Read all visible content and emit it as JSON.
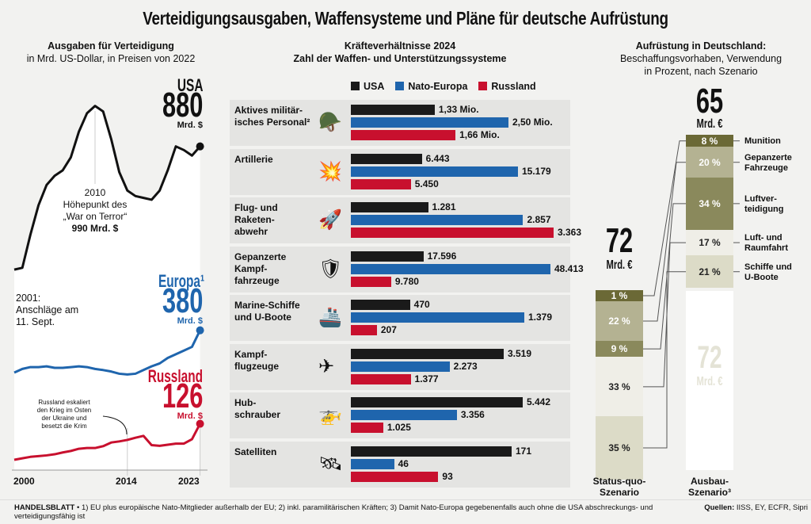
{
  "title": "Verteidigungsausgaben, Waffensysteme und Pläne für deutsche Aufrüstung",
  "left": {
    "heading": "Ausgaben für Verteidigung",
    "subheading": "in Mrd. US-Dollar, in Preisen von 2022",
    "usa": {
      "label": "USA",
      "value": "880",
      "unit": "Mrd. $"
    },
    "europe": {
      "label": "Europa¹",
      "value": "380",
      "unit": "Mrd. $"
    },
    "russia": {
      "label": "Russland",
      "value": "126",
      "unit": "Mrd. $"
    },
    "ann_2010": {
      "year": "2010",
      "l1": "Höhepunkt des",
      "l2": "„War on Terror“",
      "l3": "990 Mrd. $"
    },
    "ann_2001": {
      "l1": "2001:",
      "l2": "Anschläge am",
      "l3": "11. Sept."
    },
    "ann_russia": {
      "l1": "Russland eskaliert",
      "l2": "den Krieg im Osten",
      "l3": "der Ukraine und",
      "l4": "besetzt die Krim"
    },
    "ticks": [
      "2000",
      "2014",
      "2023"
    ]
  },
  "chart_data": [
    {
      "type": "line",
      "title": "Ausgaben für Verteidigung",
      "ylabel": "in Mrd. US-Dollar, in Preisen von 2022",
      "x": [
        2000,
        2001,
        2002,
        2003,
        2004,
        2005,
        2006,
        2007,
        2008,
        2009,
        2010,
        2011,
        2012,
        2013,
        2014,
        2015,
        2016,
        2017,
        2018,
        2019,
        2020,
        2021,
        2022,
        2023
      ],
      "series": [
        {
          "name": "USA",
          "color": "#111111",
          "values": [
            545,
            550,
            640,
            720,
            775,
            800,
            815,
            850,
            920,
            970,
            990,
            975,
            900,
            810,
            760,
            745,
            740,
            735,
            760,
            815,
            880,
            870,
            855,
            880
          ]
        },
        {
          "name": "Europa¹",
          "color": "#1f65ad",
          "values": [
            265,
            275,
            280,
            280,
            282,
            278,
            278,
            280,
            282,
            280,
            275,
            272,
            268,
            262,
            260,
            262,
            272,
            282,
            290,
            305,
            315,
            325,
            335,
            380
          ]
        },
        {
          "name": "Russland",
          "color": "#c8102e",
          "values": [
            28,
            32,
            36,
            38,
            40,
            43,
            48,
            52,
            58,
            60,
            60,
            65,
            75,
            78,
            82,
            88,
            93,
            68,
            66,
            69,
            72,
            72,
            84,
            126
          ]
        }
      ],
      "xticks": [
        "2000",
        "2014",
        "2023"
      ],
      "ylim": [
        0,
        1000
      ]
    },
    {
      "type": "bar",
      "title": "Kräfteverhältnisse 2024",
      "subtitle": "Zahl der Waffen- und Unterstützungssysteme",
      "legend": [
        "USA",
        "Nato-Europa",
        "Russland"
      ],
      "colors": [
        "#1a1a1a",
        "#1f65ad",
        "#c8102e"
      ],
      "rows": [
        {
          "label": "Aktives militär-isches Personal²",
          "l1": "Aktives militär-",
          "l2": "isches Personal²",
          "icon": "soldier-icon",
          "values": [
            1.33,
            2.5,
            1.66
          ],
          "labels": [
            "1,33 Mio.",
            "2,50 Mio.",
            "1,66 Mio."
          ]
        },
        {
          "label": "Artillerie",
          "l1": "Artillerie",
          "l2": "",
          "icon": "artillery-icon",
          "values": [
            6443,
            15179,
            5450
          ],
          "labels": [
            "6.443",
            "15.179",
            "5.450"
          ]
        },
        {
          "label": "Flug- und Raketen-abwehr",
          "l1": "Flug- und",
          "l2": "Raketen-",
          "l3": "abwehr",
          "icon": "air-defense-icon",
          "values": [
            1281,
            2857,
            3363
          ],
          "labels": [
            "1.281",
            "2.857",
            "3.363"
          ]
        },
        {
          "label": "Gepanzerte Kampf-fahrzeuge",
          "l1": "Gepanzerte",
          "l2": "Kampf-",
          "l3": "fahrzeuge",
          "icon": "tank-icon",
          "values": [
            17596,
            48413,
            9780
          ],
          "labels": [
            "17.596",
            "48.413",
            "9.780"
          ]
        },
        {
          "label": "Marine-Schiffe und U-Boote",
          "l1": "Marine-Schiffe",
          "l2": "und U-Boote",
          "icon": "ship-icon",
          "values": [
            470,
            1379,
            207
          ],
          "labels": [
            "470",
            "1.379",
            "207"
          ]
        },
        {
          "label": "Kampf-flugzeuge",
          "l1": "Kampf-",
          "l2": "flugzeuge",
          "icon": "jet-icon",
          "values": [
            3519,
            2273,
            1377
          ],
          "labels": [
            "3.519",
            "2.273",
            "1.377"
          ]
        },
        {
          "label": "Hub-schrauber",
          "l1": "Hub-",
          "l2": "schrauber",
          "icon": "helicopter-icon",
          "values": [
            5442,
            3356,
            1025
          ],
          "labels": [
            "5.442",
            "3.356",
            "1.025"
          ]
        },
        {
          "label": "Satelliten",
          "l1": "Satelliten",
          "l2": "",
          "icon": "satellite-icon",
          "values": [
            171,
            46,
            93
          ],
          "labels": [
            "171",
            "46",
            "93"
          ]
        }
      ]
    },
    {
      "type": "bar",
      "stacked": true,
      "title": "Aufrüstung in Deutschland:",
      "subtitle": "Beschaffungsvorhaben, Verwendung in Prozent, nach Szenario",
      "categories": [
        "Status-quo-Szenario",
        "Ausbau-Szenario³"
      ],
      "totals": [
        "72",
        "65"
      ],
      "totals_unit": "Mrd. €",
      "segments": [
        {
          "name": "Munition",
          "color": "#6b6936",
          "values": [
            1,
            8
          ]
        },
        {
          "name": "Gepanzerte Fahrzeuge",
          "color": "#b4b292",
          "values": [
            22,
            20
          ]
        },
        {
          "name": "Luftverteidigung",
          "color": "#8a895c",
          "values": [
            9,
            34
          ]
        },
        {
          "name": "Luft- und Raumfahrt",
          "color": "#efeee7",
          "values": [
            33,
            17
          ]
        },
        {
          "name": "Schiffe und U-Boote",
          "color": "#dcdbc7",
          "values": [
            35,
            21
          ]
        }
      ]
    }
  ],
  "middle": {
    "heading": "Kräfteverhältnisse 2024",
    "subheading": "Zahl der Waffen- und Unterstützungssysteme",
    "legend": [
      "USA",
      "Nato-Europa",
      "Russland"
    ]
  },
  "right": {
    "h1": "Aufrüstung in Deutschland:",
    "h2": "Beschaffungsvorhaben, Verwendung",
    "h3": "in Prozent, nach Szenario",
    "sq": {
      "value": "72",
      "unit": "Mrd. €",
      "l1": "Status-quo-",
      "l2": "Szenario"
    },
    "ab": {
      "value": "65",
      "unit": "Mrd. €",
      "l1": "Ausbau-",
      "l2": "Szenario³",
      "ghost_value": "72",
      "ghost_unit": "Mrd. €"
    },
    "labels": [
      [
        "Munition"
      ],
      [
        "Gepanzerte",
        "Fahrzeuge"
      ],
      [
        "Luftver-",
        "teidigung"
      ],
      [
        "Luft- und",
        "Raumfahrt"
      ],
      [
        "Schiffe und",
        "U-Boote"
      ]
    ]
  },
  "footer": {
    "brand": "HANDELSBLATT",
    "notes": " • 1) EU plus europäische Nato-Mitglieder außerhalb der EU; 2) inkl. paramilitärischen Kräften; 3) Damit Nato-Europa gegebenenfalls auch ohne die USA abschreckungs- und verteidigungsfähig ist",
    "sources_label": "Quellen:",
    "sources": " IISS, EY, ECFR, Sipri"
  }
}
